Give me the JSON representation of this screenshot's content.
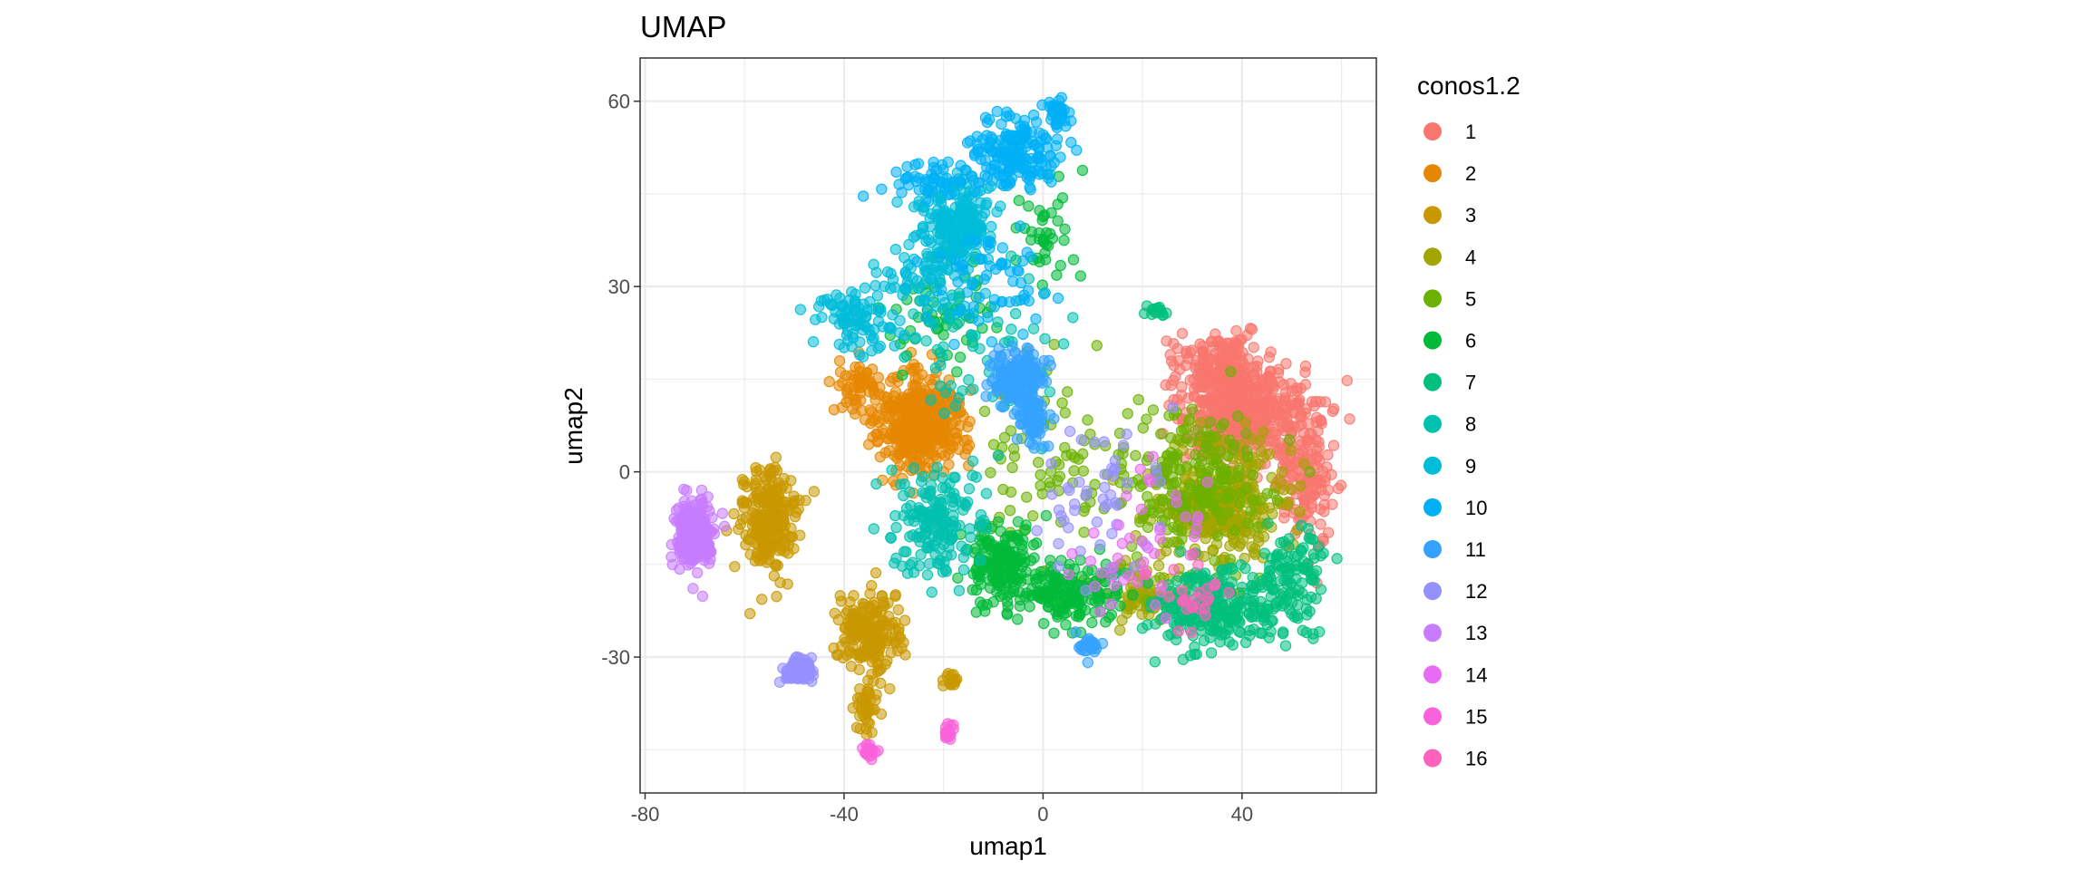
{
  "chart_data": {
    "type": "scatter",
    "title": "UMAP",
    "xlabel": "umap1",
    "ylabel": "umap2",
    "xlim": [
      -81,
      67
    ],
    "ylim": [
      -52,
      67
    ],
    "xticks": [
      -80,
      -40,
      0,
      40
    ],
    "yticks": [
      60,
      30,
      0,
      -30
    ],
    "grid": true,
    "legend": {
      "title": "conos1.2",
      "position": "right"
    },
    "series": [
      {
        "name": "1",
        "color": "#F8766D",
        "clusters": [
          {
            "center": [
              40,
              10
            ],
            "spread": [
              11,
              8
            ],
            "points": 520
          },
          {
            "center": [
              52,
              0
            ],
            "spread": [
              6,
              10
            ],
            "points": 160
          },
          {
            "center": [
              35,
              18
            ],
            "spread": [
              8,
              4
            ],
            "points": 120
          }
        ]
      },
      {
        "name": "2",
        "color": "#E58700",
        "clusters": [
          {
            "center": [
              -25,
              8
            ],
            "spread": [
              8,
              7
            ],
            "points": 430
          },
          {
            "center": [
              -38,
              14
            ],
            "spread": [
              4,
              3
            ],
            "points": 50
          }
        ]
      },
      {
        "name": "3",
        "color": "#C99800",
        "clusters": [
          {
            "center": [
              -55,
              -8
            ],
            "spread": [
              5,
              8
            ],
            "points": 240
          },
          {
            "center": [
              -35,
              -26
            ],
            "spread": [
              6,
              6
            ],
            "points": 180
          },
          {
            "center": [
              -36,
              -38
            ],
            "spread": [
              2,
              4
            ],
            "points": 40
          },
          {
            "center": [
              -18,
              -34
            ],
            "spread": [
              2,
              2
            ],
            "points": 15
          }
        ]
      },
      {
        "name": "4",
        "color": "#A3A500",
        "clusters": [
          {
            "center": [
              35,
              -5
            ],
            "spread": [
              12,
              9
            ],
            "points": 360
          },
          {
            "center": [
              20,
              -20
            ],
            "spread": [
              6,
              5
            ],
            "points": 90
          }
        ]
      },
      {
        "name": "5",
        "color": "#6BB100",
        "clusters": [
          {
            "center": [
              30,
              -2
            ],
            "spread": [
              14,
              11
            ],
            "points": 220
          },
          {
            "center": [
              0,
              2
            ],
            "spread": [
              14,
              14
            ],
            "points": 70
          }
        ]
      },
      {
        "name": "6",
        "color": "#00BA38",
        "clusters": [
          {
            "center": [
              -8,
              -15
            ],
            "spread": [
              6,
              6
            ],
            "points": 170
          },
          {
            "center": [
              5,
              -20
            ],
            "spread": [
              8,
              5
            ],
            "points": 160
          },
          {
            "center": [
              -20,
              25
            ],
            "spread": [
              10,
              10
            ],
            "points": 60
          },
          {
            "center": [
              0,
              40
            ],
            "spread": [
              5,
              8
            ],
            "points": 40
          }
        ]
      },
      {
        "name": "7",
        "color": "#00BF7D",
        "clusters": [
          {
            "center": [
              35,
              -22
            ],
            "spread": [
              12,
              6
            ],
            "points": 260
          },
          {
            "center": [
              50,
              -18
            ],
            "spread": [
              6,
              7
            ],
            "points": 100
          },
          {
            "center": [
              23,
              26
            ],
            "spread": [
              2,
              1
            ],
            "points": 15
          }
        ]
      },
      {
        "name": "8",
        "color": "#00C0AF",
        "clusters": [
          {
            "center": [
              -22,
              -8
            ],
            "spread": [
              8,
              8
            ],
            "points": 170
          },
          {
            "center": [
              -12,
              20
            ],
            "spread": [
              14,
              12
            ],
            "points": 70
          }
        ]
      },
      {
        "name": "9",
        "color": "#00BCD8",
        "clusters": [
          {
            "center": [
              -17,
              40
            ],
            "spread": [
              7,
              7
            ],
            "points": 220
          },
          {
            "center": [
              -37,
              25
            ],
            "spread": [
              7,
              5
            ],
            "points": 90
          },
          {
            "center": [
              -25,
              30
            ],
            "spread": [
              8,
              6
            ],
            "points": 60
          }
        ]
      },
      {
        "name": "10",
        "color": "#00B0F6",
        "clusters": [
          {
            "center": [
              -5,
              52
            ],
            "spread": [
              8,
              5
            ],
            "points": 180
          },
          {
            "center": [
              3,
              58
            ],
            "spread": [
              2,
              2
            ],
            "points": 40
          },
          {
            "center": [
              -22,
              47
            ],
            "spread": [
              8,
              3
            ],
            "points": 50
          },
          {
            "center": [
              -10,
              30
            ],
            "spread": [
              10,
              10
            ],
            "points": 60
          }
        ]
      },
      {
        "name": "11",
        "color": "#35A2FF",
        "clusters": [
          {
            "center": [
              -5,
              15
            ],
            "spread": [
              5,
              4
            ],
            "points": 160
          },
          {
            "center": [
              -2,
              8
            ],
            "spread": [
              3,
              4
            ],
            "points": 60
          },
          {
            "center": [
              9,
              -28
            ],
            "spread": [
              2,
              2
            ],
            "points": 25
          }
        ]
      },
      {
        "name": "12",
        "color": "#9590FF",
        "clusters": [
          {
            "center": [
              -49,
              -32
            ],
            "spread": [
              2.5,
              2
            ],
            "points": 90
          },
          {
            "center": [
              10,
              -5
            ],
            "spread": [
              10,
              10
            ],
            "points": 50
          }
        ]
      },
      {
        "name": "13",
        "color": "#C77CFF",
        "clusters": [
          {
            "center": [
              -70,
              -10
            ],
            "spread": [
              3.5,
              5
            ],
            "points": 230
          }
        ]
      },
      {
        "name": "14",
        "color": "#E76BF3",
        "clusters": [
          {
            "center": [
              20,
              -12
            ],
            "spread": [
              12,
              12
            ],
            "points": 45
          }
        ]
      },
      {
        "name": "15",
        "color": "#FA62DB",
        "clusters": [
          {
            "center": [
              -35,
              -45
            ],
            "spread": [
              1,
              1.2
            ],
            "points": 20
          },
          {
            "center": [
              -19,
              -42
            ],
            "spread": [
              1,
              1.5
            ],
            "points": 15
          }
        ]
      },
      {
        "name": "16",
        "color": "#FF62BC",
        "clusters": [
          {
            "center": [
              30,
              -20
            ],
            "spread": [
              6,
              5
            ],
            "points": 25
          }
        ]
      }
    ]
  }
}
